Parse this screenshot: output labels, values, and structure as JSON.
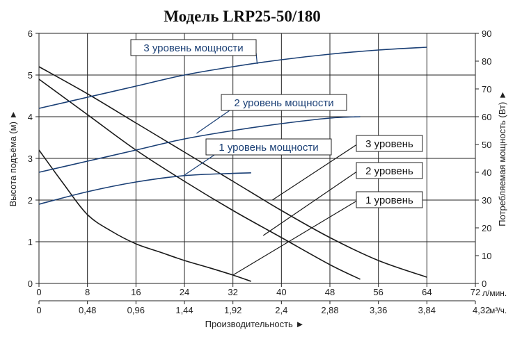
{
  "chart_data": {
    "type": "line",
    "title": "Модель LRP25-50/180",
    "xlabel": "Производительность ►",
    "ylabel_left": "Высота подъёма (м) ►",
    "ylabel_right": "Потребляемая мощность (Вт) ►",
    "x_unit_top": "л/мин.",
    "x_unit_bottom": "м³/ч.",
    "x_ticks_lpm": [
      "0",
      "8",
      "16",
      "24",
      "32",
      "40",
      "48",
      "56",
      "64",
      "72"
    ],
    "x_ticks_m3h": [
      "0",
      "0,48",
      "0,96",
      "1,44",
      "1,92",
      "2,4",
      "2,88",
      "3,36",
      "3,84",
      "4,32"
    ],
    "y_ticks_left": [
      "0",
      "1",
      "2",
      "3",
      "4",
      "5",
      "6"
    ],
    "y_ticks_right": [
      "0",
      "10",
      "20",
      "30",
      "40",
      "50",
      "60",
      "70",
      "80",
      "90"
    ],
    "xlim": [
      0,
      72
    ],
    "ylim_left": [
      0,
      6
    ],
    "ylim_right": [
      0,
      90
    ],
    "grid": true,
    "head_series": [
      {
        "name": "3 уровень",
        "x": [
          0,
          8,
          16,
          24,
          32,
          40,
          48,
          56,
          64
        ],
        "y": [
          5.2,
          4.55,
          3.85,
          3.15,
          2.45,
          1.75,
          1.1,
          0.55,
          0.15
        ]
      },
      {
        "name": "2 уровень",
        "x": [
          0,
          8,
          16,
          24,
          32,
          40,
          48,
          53
        ],
        "y": [
          4.9,
          4.05,
          3.2,
          2.45,
          1.75,
          1.1,
          0.45,
          0.1
        ]
      },
      {
        "name": "1 уровень",
        "x": [
          0,
          4,
          8,
          12,
          16,
          20,
          24,
          28,
          32,
          35
        ],
        "y": [
          3.2,
          2.4,
          1.65,
          1.25,
          0.95,
          0.75,
          0.55,
          0.38,
          0.2,
          0.05
        ]
      }
    ],
    "power_series": [
      {
        "name": "3 уровень мощности",
        "x": [
          0,
          8,
          16,
          24,
          32,
          40,
          48,
          56,
          64
        ],
        "y": [
          63,
          67,
          71,
          75,
          78,
          80.5,
          82.5,
          84,
          85
        ]
      },
      {
        "name": "2 уровень мощности",
        "x": [
          0,
          8,
          16,
          24,
          32,
          40,
          48,
          53
        ],
        "y": [
          40,
          44,
          48,
          52,
          55,
          57.5,
          59.5,
          60
        ]
      },
      {
        "name": "1 уровень мощности",
        "x": [
          0,
          8,
          16,
          24,
          32,
          35
        ],
        "y": [
          28.5,
          33,
          36.5,
          38.8,
          39.6,
          39.8
        ]
      }
    ],
    "callouts": [
      {
        "label": "3 уровень мощности",
        "kind": "power",
        "anchor_x": 36,
        "anchor_y_right": 79
      },
      {
        "label": "2 уровень мощности",
        "kind": "power",
        "anchor_x": 26,
        "anchor_y_right": 54
      },
      {
        "label": "1 уровень мощности",
        "kind": "power",
        "anchor_x": 24,
        "anchor_y_right": 39
      },
      {
        "label": "3 уровень",
        "kind": "head",
        "anchor_x": 38.5,
        "anchor_y_left": 2.0
      },
      {
        "label": "2 уровень",
        "kind": "head",
        "anchor_x": 37,
        "anchor_y_left": 1.15
      },
      {
        "label": "1 уровень",
        "kind": "head",
        "anchor_x": 32,
        "anchor_y_left": 0.2
      }
    ],
    "colors": {
      "head": "#1a1a1a",
      "power": "#1a3f75",
      "grid": "#222222"
    }
  }
}
